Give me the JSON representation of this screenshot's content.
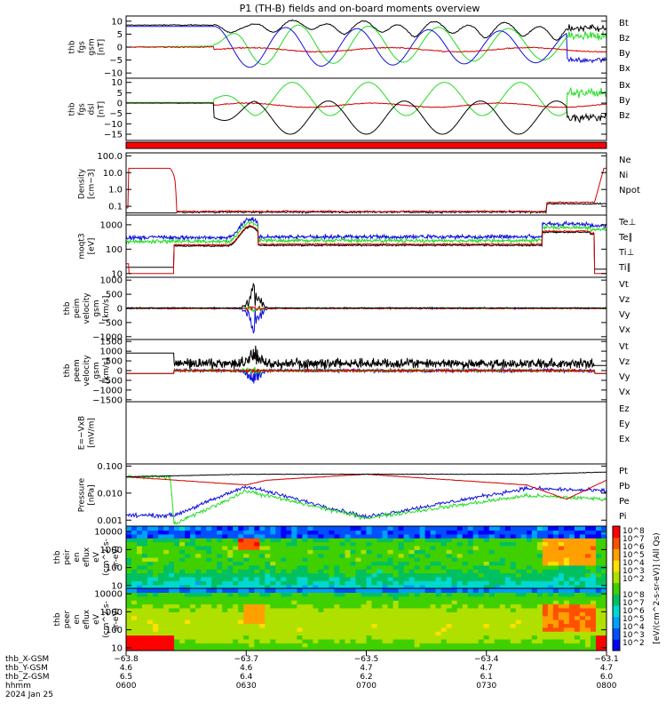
{
  "title": "P1 (TH-B) fields and on-board moments overview",
  "colors": {
    "black": "#000000",
    "red": "#d40000",
    "green": "#22dd22",
    "blue": "#1010e0"
  },
  "panels": [
    {
      "id": "bgsm",
      "ylabel": [
        "thb",
        "fgs",
        "gsm",
        "[nT]"
      ],
      "ticks": [
        {
          "v": 10,
          "l": "10"
        },
        {
          "v": 5,
          "l": "5"
        },
        {
          "v": 0,
          "l": "0"
        },
        {
          "v": -5,
          "l": "−5"
        },
        {
          "v": -10,
          "l": "−10"
        }
      ],
      "ylim": [
        -12,
        12
      ],
      "log": false,
      "legend": [
        {
          "name": "Bt",
          "c": "black"
        },
        {
          "name": "Bz",
          "c": "red"
        },
        {
          "name": "By",
          "c": "green"
        },
        {
          "name": "Bx",
          "c": "blue"
        }
      ]
    },
    {
      "id": "bdsl",
      "ylabel": [
        "thb",
        "fgs",
        "dsl",
        "[nT]"
      ],
      "ticks": [
        {
          "v": 10,
          "l": "10"
        },
        {
          "v": 5,
          "l": "5"
        },
        {
          "v": 0,
          "l": "0"
        },
        {
          "v": -5,
          "l": "−5"
        },
        {
          "v": -10,
          "l": "−10"
        },
        {
          "v": -15,
          "l": "−15"
        }
      ],
      "ylim": [
        -18,
        12
      ],
      "log": false,
      "legend": [
        {
          "name": "Bx",
          "c": "black"
        },
        {
          "name": "By",
          "c": "green"
        },
        {
          "name": "Bz",
          "c": "red"
        }
      ]
    },
    {
      "id": "density",
      "ylabel": [
        "Density",
        "[cm−3]"
      ],
      "ticks": [
        {
          "v": 100,
          "l": "100.0"
        },
        {
          "v": 10,
          "l": "10.0"
        },
        {
          "v": 1,
          "l": "1.0"
        },
        {
          "v": 0.1,
          "l": "0.1"
        }
      ],
      "ylim": [
        0.03,
        150
      ],
      "log": true,
      "legend": [
        {
          "name": "Ne",
          "c": "red"
        },
        {
          "name": "Ni",
          "c": "black"
        },
        {
          "name": "Npot",
          "c": "blue"
        }
      ]
    },
    {
      "id": "temp",
      "ylabel": [
        "moqt3",
        "[eV]"
      ],
      "ticks": [
        {
          "v": 1000,
          "l": "1000"
        },
        {
          "v": 100,
          "l": "100"
        },
        {
          "v": 10,
          "l": "10"
        }
      ],
      "ylim": [
        7,
        2500
      ],
      "log": true,
      "legend": [
        {
          "name": "Te⊥",
          "c": "red"
        },
        {
          "name": "Te∥",
          "c": "black"
        },
        {
          "name": "Ti⊥",
          "c": "green"
        },
        {
          "name": "Ti∥",
          "c": "green"
        }
      ]
    },
    {
      "id": "vi",
      "ylabel": [
        "thb",
        "peim",
        "velocity",
        "gsm",
        "[km/s]"
      ],
      "ticks": [
        {
          "v": 1000,
          "l": "1000"
        },
        {
          "v": 500,
          "l": "500"
        },
        {
          "v": 0,
          "l": "0"
        },
        {
          "v": -500,
          "l": "−500"
        },
        {
          "v": -1000,
          "l": "−1000"
        }
      ],
      "ylim": [
        -1100,
        1100
      ],
      "log": false,
      "legend": [
        {
          "name": "Vt",
          "c": "black"
        },
        {
          "name": "Vz",
          "c": "red"
        },
        {
          "name": "Vy",
          "c": "green"
        },
        {
          "name": "Vx",
          "c": "blue"
        }
      ]
    },
    {
      "id": "ve",
      "ylabel": [
        "thb",
        "peem",
        "velocity",
        "gsm",
        "[km/s]"
      ],
      "ticks": [
        {
          "v": 1500,
          "l": "1500"
        },
        {
          "v": 1000,
          "l": "1000"
        },
        {
          "v": 500,
          "l": "500"
        },
        {
          "v": 0,
          "l": "0"
        },
        {
          "v": -500,
          "l": "−500"
        },
        {
          "v": -1000,
          "l": "−1000"
        },
        {
          "v": -1500,
          "l": "−1500"
        }
      ],
      "ylim": [
        -1600,
        1600
      ],
      "log": false,
      "legend": [
        {
          "name": "Vt",
          "c": "black"
        },
        {
          "name": "Vz",
          "c": "red"
        },
        {
          "name": "Vy",
          "c": "green"
        },
        {
          "name": "Vx",
          "c": "blue"
        }
      ]
    },
    {
      "id": "efield",
      "ylabel": [
        "E=−VxB",
        "[mV/m]"
      ],
      "ticks": [],
      "ylim": [
        0,
        1
      ],
      "log": false,
      "legend": [
        {
          "name": "Ez",
          "c": "red"
        },
        {
          "name": "Ey",
          "c": "green"
        },
        {
          "name": "Ex",
          "c": "blue"
        }
      ]
    },
    {
      "id": "pressure",
      "ylabel": [
        "Pressure",
        "[nPa]"
      ],
      "ticks": [
        {
          "v": 0.1,
          "l": "0.100"
        },
        {
          "v": 0.01,
          "l": "0.010"
        },
        {
          "v": 0.001,
          "l": "0.001"
        }
      ],
      "ylim": [
        0.0006,
        0.12
      ],
      "log": true,
      "legend": [
        {
          "name": "Pt",
          "c": "black"
        },
        {
          "name": "Pb",
          "c": "red"
        },
        {
          "name": "Pe",
          "c": "green"
        },
        {
          "name": "Pi",
          "c": "blue"
        }
      ]
    },
    {
      "id": "ispec",
      "ylabel": [
        "thb",
        "peir",
        "en",
        "eflux",
        "eV",
        "(cm^2-s-",
        "sr-eV)"
      ],
      "ticks": [
        {
          "v": 10000,
          "l": "10000"
        },
        {
          "v": 1000,
          "l": "1000"
        },
        {
          "v": 100,
          "l": "100"
        },
        {
          "v": 10,
          "l": "10"
        }
      ],
      "ylim": [
        7,
        20000
      ],
      "log": true,
      "legend": []
    },
    {
      "id": "espec",
      "ylabel": [
        "thb",
        "peer",
        "en",
        "eflux",
        "eV",
        "(cm^2-s-",
        "sr-eV)"
      ],
      "ticks": [
        {
          "v": 10000,
          "l": "10000"
        },
        {
          "v": 1000,
          "l": "1000"
        },
        {
          "v": 100,
          "l": "100"
        },
        {
          "v": 10,
          "l": "10"
        }
      ],
      "ylim": [
        7,
        20000
      ],
      "log": true,
      "legend": []
    }
  ],
  "colorbar": {
    "label": "[eV/(cm^2-s-sr-eV)] (All Qs)",
    "ticks": [
      "10^8",
      "10^7",
      "10^6",
      "10^5",
      "10^4",
      "10^3",
      "10^2"
    ],
    "ticks_lower": [
      "10^8",
      "10^7",
      "10^6",
      "10^5",
      "10^4",
      "10^3",
      "10^2"
    ]
  },
  "xaxis": {
    "rows": [
      {
        "label": "thb_X-GSM",
        "values": [
          "−63.8",
          "−63.7",
          "−63.5",
          "−63.4",
          "−63.1"
        ]
      },
      {
        "label": "thb_Y-GSM",
        "values": [
          "4.6",
          "4.6",
          "4.7",
          "4.7",
          "4.7"
        ]
      },
      {
        "label": "thb_Z-GSM",
        "values": [
          "6.5",
          "6.4",
          "6.2",
          "6.1",
          "6.0"
        ]
      },
      {
        "label": "hhmm",
        "values": [
          "0600",
          "0630",
          "0700",
          "0730",
          "0800"
        ]
      }
    ],
    "date": "2024 Jan 25"
  },
  "chart_data": {
    "type": "line",
    "title": "P1 (TH-B) fields and on-board moments overview",
    "x_unit": "hhmm",
    "x_range": [
      "0600",
      "0800"
    ],
    "series_bgsm": [
      {
        "name": "Bt",
        "x": [
          "0600",
          "0610",
          "0620",
          "0630",
          "0640",
          "0650",
          "0700",
          "0710",
          "0720",
          "0730",
          "0740",
          "0750",
          "0800"
        ],
        "values": [
          8,
          8,
          8.5,
          8,
          6,
          6,
          6,
          5,
          4,
          3,
          6,
          1,
          9
        ]
      },
      {
        "name": "Bz",
        "x": [
          "0600",
          "0620",
          "0630",
          "0640",
          "0650",
          "0700",
          "0710",
          "0720",
          "0730",
          "0740",
          "0750",
          "0800"
        ],
        "values": [
          0,
          0,
          -1,
          -1,
          -2,
          -1,
          -2,
          0,
          -2,
          -1,
          -1,
          -2
        ]
      },
      {
        "name": "By",
        "x": [
          "0600",
          "0610",
          "0620",
          "0630",
          "0640",
          "0650",
          "0700",
          "0710",
          "0720",
          "0730",
          "0740",
          "0750",
          "0800"
        ],
        "values": [
          0,
          0,
          2,
          8,
          5,
          -5,
          5,
          -5,
          4,
          -4,
          5,
          -4,
          8
        ]
      },
      {
        "name": "Bx",
        "x": [
          "0600",
          "0610",
          "0620",
          "0630",
          "0640",
          "0650",
          "0700",
          "0710",
          "0720",
          "0730",
          "0740",
          "0750",
          "0800"
        ],
        "values": [
          8,
          8,
          8,
          5,
          -5,
          5,
          -5,
          5,
          -4,
          4,
          -2,
          -5,
          -5
        ]
      }
    ],
    "series_density": [
      {
        "name": "Ne",
        "x": [
          "0600",
          "0601",
          "0611",
          "0612",
          "0740",
          "0741",
          "0753",
          "0758",
          "0800"
        ],
        "values": [
          18,
          18,
          18,
          0.05,
          0.06,
          0.18,
          0.15,
          15,
          18
        ]
      },
      {
        "name": "Ni",
        "x": [
          "0600",
          "0612",
          "0740",
          "0800"
        ],
        "values": [
          0.04,
          0.04,
          0.15,
          0.12
        ]
      }
    ],
    "series_temperature": [
      {
        "name": "Te⊥",
        "x": [
          "0600",
          "0601",
          "0611",
          "0612",
          "0630",
          "0700",
          "0740",
          "0755",
          "0800"
        ],
        "values": [
          20,
          10,
          10,
          150,
          180,
          150,
          250,
          300,
          10
        ]
      },
      {
        "name": "Ti⊥",
        "x": [
          "0600",
          "0612",
          "0630",
          "0700",
          "0740",
          "0755",
          "0800"
        ],
        "values": [
          350,
          300,
          1800,
          300,
          1000,
          1000,
          900
        ]
      }
    ],
    "series_pressure": [
      {
        "name": "Pt",
        "x": [
          "0600",
          "0630",
          "0700",
          "0740",
          "0800"
        ],
        "values": [
          0.04,
          0.05,
          0.05,
          0.05,
          0.06
        ]
      },
      {
        "name": "Pb",
        "x": [
          "0600",
          "0630",
          "0635",
          "0700",
          "0740",
          "0750",
          "0800"
        ],
        "values": [
          0.04,
          0.02,
          0.03,
          0.05,
          0.02,
          0.006,
          0.03
        ]
      },
      {
        "name": "Pe",
        "x": [
          "0600",
          "0611",
          "0612",
          "0630",
          "0700",
          "0740",
          "0800"
        ],
        "values": [
          0.04,
          0.04,
          0.0007,
          0.012,
          0.0012,
          0.008,
          0.006
        ]
      },
      {
        "name": "Pi",
        "x": [
          "0600",
          "0612",
          "0630",
          "0700",
          "0740",
          "0800"
        ],
        "values": [
          0.0015,
          0.0015,
          0.018,
          0.0013,
          0.015,
          0.012
        ]
      }
    ]
  }
}
